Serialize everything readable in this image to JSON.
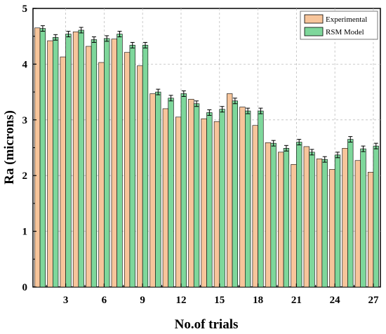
{
  "chart_data": {
    "type": "bar",
    "title": "",
    "xlabel": "No.of trials",
    "ylabel": "Ra (microns)",
    "ylim": [
      0,
      5
    ],
    "yticks": [
      "0",
      "1",
      "2",
      "3",
      "4",
      "5"
    ],
    "xtick_labels": [
      "3",
      "6",
      "9",
      "12",
      "15",
      "18",
      "21",
      "24",
      "27"
    ],
    "xtick_positions": [
      3,
      6,
      9,
      12,
      15,
      18,
      21,
      24,
      27
    ],
    "categories": [
      1,
      2,
      3,
      4,
      5,
      6,
      7,
      8,
      9,
      10,
      11,
      12,
      13,
      14,
      15,
      16,
      17,
      18,
      19,
      20,
      21,
      22,
      23,
      24,
      25,
      26,
      27
    ],
    "grid": true,
    "legend_position": "top-right",
    "series": [
      {
        "name": "Experimental",
        "color": "#f7c59b",
        "values": [
          4.65,
          4.42,
          4.13,
          4.58,
          4.32,
          4.03,
          4.45,
          4.21,
          3.97,
          3.47,
          3.2,
          3.05,
          3.37,
          3.02,
          2.97,
          3.47,
          3.23,
          2.9,
          2.59,
          2.42,
          2.2,
          2.52,
          2.3,
          2.11,
          2.49,
          2.27,
          2.06
        ]
      },
      {
        "name": "RSM Model",
        "color": "#7ed79b",
        "values": [
          4.64,
          4.48,
          4.54,
          4.61,
          4.44,
          4.46,
          4.54,
          4.34,
          4.34,
          3.5,
          3.39,
          3.47,
          3.29,
          3.13,
          3.19,
          3.34,
          3.16,
          3.16,
          2.58,
          2.49,
          2.6,
          2.42,
          2.29,
          2.37,
          2.65,
          2.48,
          2.53
        ]
      }
    ],
    "error_bars": true,
    "error_bar_series": "RSM Model",
    "error_value": 0.05
  }
}
